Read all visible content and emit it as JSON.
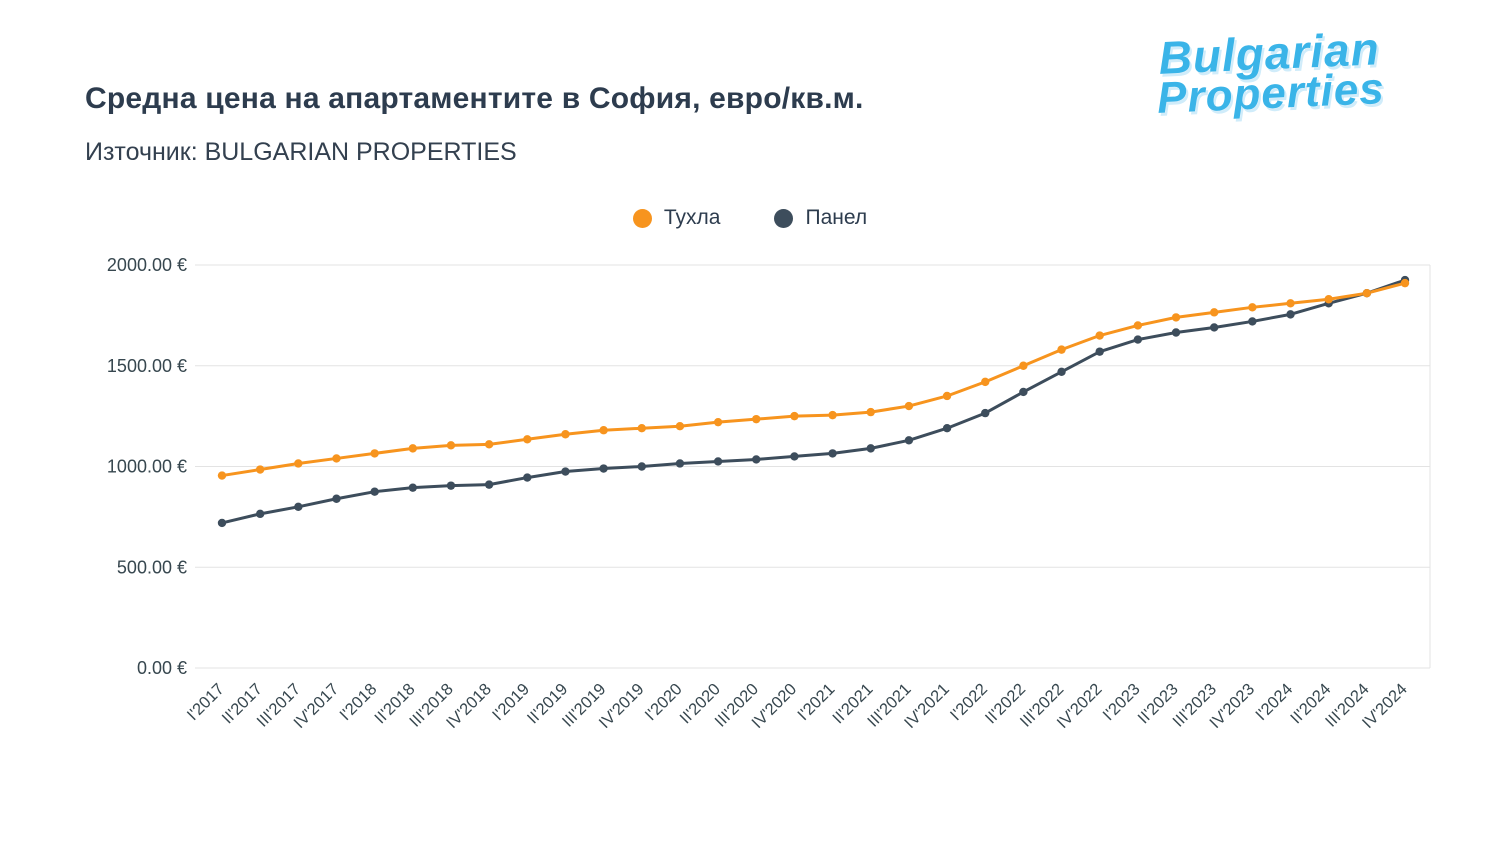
{
  "page": {
    "background": "#ffffff"
  },
  "header": {
    "title": "Средна цена на апартаментите в София, евро/кв.м.",
    "subtitle": "Източник: BULGARIAN PROPERTIES"
  },
  "logo": {
    "line1": "Bulgarian",
    "line2": "Properties",
    "color": "#3ab4e8"
  },
  "chart_data": {
    "type": "line",
    "title": "Средна цена на апартаментите в София, евро/кв.м.",
    "source": "Източник: BULGARIAN PROPERTIES",
    "xlabel": "",
    "ylabel": "",
    "ylim": [
      0,
      2000
    ],
    "grid": true,
    "legend_position": "top-center",
    "currency": "EUR",
    "tick_values": [
      0,
      500,
      1000,
      1500,
      2000
    ],
    "tick_labels": [
      "0.00 €",
      "500.00 €",
      "1000.00 €",
      "1500.00 €",
      "2000.00 €"
    ],
    "categories": [
      "I'2017",
      "II'2017",
      "III'2017",
      "IV'2017",
      "I'2018",
      "II'2018",
      "III'2018",
      "IV'2018",
      "I'2019",
      "II'2019",
      "III'2019",
      "IV'2019",
      "I'2020",
      "II'2020",
      "III'2020",
      "IV'2020",
      "I'2021",
      "II'2021",
      "III'2021",
      "IV'2021",
      "I'2022",
      "II'2022",
      "III'2022",
      "IV'2022",
      "I'2023",
      "II'2023",
      "III'2023",
      "IV'2023",
      "I'2024",
      "II'2024",
      "III'2024",
      "IV'2024"
    ],
    "series": [
      {
        "id": "tuhla",
        "name": "Тухла",
        "color": "#f7941e",
        "values": [
          955,
          985,
          1015,
          1040,
          1065,
          1090,
          1105,
          1110,
          1135,
          1160,
          1180,
          1190,
          1200,
          1220,
          1235,
          1250,
          1255,
          1270,
          1300,
          1350,
          1420,
          1500,
          1580,
          1650,
          1700,
          1740,
          1765,
          1790,
          1810,
          1830,
          1860,
          1910
        ]
      },
      {
        "id": "panel",
        "name": "Панел",
        "color": "#3d4d5c",
        "values": [
          720,
          765,
          800,
          840,
          875,
          895,
          905,
          910,
          945,
          975,
          990,
          1000,
          1015,
          1025,
          1035,
          1050,
          1065,
          1090,
          1130,
          1190,
          1265,
          1370,
          1470,
          1570,
          1630,
          1665,
          1690,
          1720,
          1755,
          1810,
          1860,
          1925
        ]
      }
    ]
  }
}
